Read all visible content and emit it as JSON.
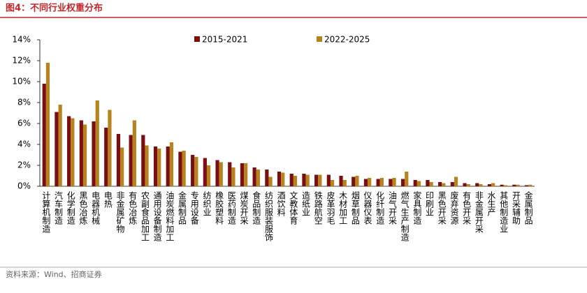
{
  "chart_data": {
    "type": "bar",
    "title": "图4：不同行业权重分布",
    "source": "资料来源：Wind、招商证券",
    "categories": [
      "计算机制造",
      "汽车制造",
      "化学制造",
      "黑色冶炼",
      "电器机械",
      "电热",
      "非金属矿物",
      "有色冶炼",
      "农副食品加工",
      "通用设备制造",
      "油炭燃料加工",
      "金属制品",
      "专用设备",
      "纺织业",
      "橡胶塑料",
      "医药制造",
      "煤炭开采",
      "食品制造",
      "纺织服装服饰",
      "酒饮料",
      "文教体育",
      "造纸业",
      "铁路航空",
      "皮革羽毛",
      "木材加工",
      "烟草制品",
      "仪器仪表",
      "化纤制造",
      "油气开采",
      "燃气生产制造",
      "家具制造",
      "印刷业",
      "黑色开采",
      "废弃资源",
      "有色开采",
      "非金属开采",
      "水生产",
      "其他制造业",
      "开采辅助",
      "金属制品"
    ],
    "series": [
      {
        "name": "2015-2021",
        "color": "#7a0f12",
        "values": [
          9.8,
          7.1,
          6.7,
          6.3,
          6.2,
          5.6,
          5.0,
          4.9,
          4.9,
          3.8,
          3.8,
          3.3,
          3.0,
          2.7,
          2.5,
          2.3,
          2.2,
          1.8,
          1.6,
          1.4,
          1.2,
          1.2,
          1.1,
          1.1,
          1.0,
          0.9,
          0.7,
          0.7,
          0.7,
          0.7,
          0.6,
          0.6,
          0.4,
          0.4,
          0.3,
          0.3,
          0.2,
          0.15,
          0.15,
          0.1
        ]
      },
      {
        "name": "2022-2025",
        "color": "#b8821c",
        "values": [
          11.8,
          7.8,
          6.5,
          5.9,
          8.2,
          7.3,
          3.7,
          6.3,
          3.9,
          3.6,
          4.2,
          3.4,
          2.8,
          2.0,
          2.3,
          1.8,
          2.2,
          1.6,
          0.9,
          1.3,
          1.0,
          1.1,
          1.1,
          0.6,
          0.6,
          1.0,
          0.8,
          0.8,
          0.8,
          1.4,
          0.5,
          0.4,
          0.3,
          0.9,
          0.2,
          0.2,
          0.3,
          0.1,
          0.15,
          0.15
        ]
      }
    ],
    "ylim": [
      0,
      14
    ],
    "yticks": [
      {
        "value": 0,
        "label": "0%"
      },
      {
        "value": 2,
        "label": "2%"
      },
      {
        "value": 4,
        "label": "4%"
      },
      {
        "value": 6,
        "label": "6%"
      },
      {
        "value": 8,
        "label": "8%"
      },
      {
        "value": 10,
        "label": "10%"
      },
      {
        "value": 12,
        "label": "12%"
      },
      {
        "value": 14,
        "label": "14%"
      }
    ],
    "legend": "top"
  }
}
